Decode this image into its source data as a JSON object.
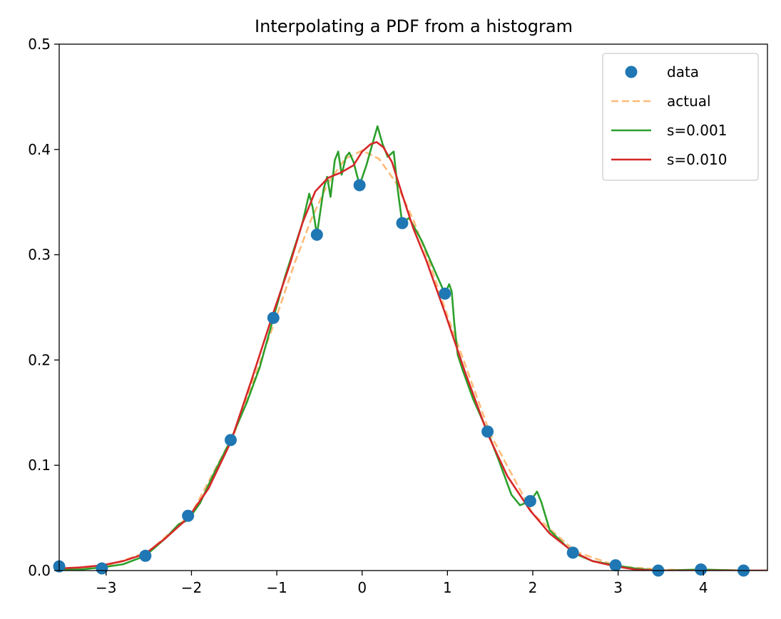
{
  "chart_data": {
    "type": "line",
    "title": "Interpolating a PDF from a histogram",
    "xlabel": "",
    "ylabel": "",
    "xlim": [
      -3.55,
      4.75
    ],
    "ylim": [
      0,
      0.5
    ],
    "x_ticks": [
      -3,
      -2,
      -1,
      0,
      1,
      2,
      3,
      4
    ],
    "x_tick_labels": [
      "−3",
      "−2",
      "−1",
      "0",
      "1",
      "2",
      "3",
      "4"
    ],
    "y_ticks": [
      0,
      0.1,
      0.2,
      0.3,
      0.4,
      0.5
    ],
    "y_tick_labels": [
      "0.0",
      "0.1",
      "0.2",
      "0.3",
      "0.4",
      "0.5"
    ],
    "grid": false,
    "legend_position": "top-right",
    "series": [
      {
        "name": "data",
        "kind": "points",
        "color": "#1f77b4",
        "x": [
          -3.55,
          -3.05,
          -2.54,
          -2.04,
          -1.54,
          -1.04,
          -0.53,
          -0.03,
          0.47,
          0.97,
          1.47,
          1.97,
          2.47,
          2.97,
          3.47,
          3.97,
          4.47
        ],
        "y": [
          0.004,
          0.002,
          0.014,
          0.052,
          0.124,
          0.24,
          0.319,
          0.366,
          0.33,
          0.263,
          0.132,
          0.066,
          0.017,
          0.005,
          0.0,
          0.001,
          0.0
        ]
      },
      {
        "name": "actual",
        "kind": "dashed-line",
        "color": "#ffbb78",
        "x": [
          -3.5,
          -3.0,
          -2.5,
          -2.0,
          -1.5,
          -1.0,
          -0.8,
          -0.6,
          -0.4,
          -0.2,
          0.0,
          0.2,
          0.4,
          0.6,
          0.8,
          1.0,
          1.5,
          2.0,
          2.5,
          3.0,
          3.5,
          4.0,
          4.5,
          4.75
        ],
        "y": [
          0.001,
          0.004,
          0.018,
          0.054,
          0.13,
          0.242,
          0.29,
          0.333,
          0.368,
          0.391,
          0.399,
          0.391,
          0.368,
          0.333,
          0.29,
          0.242,
          0.13,
          0.054,
          0.018,
          0.004,
          0.001,
          0.0,
          0.0,
          0.0
        ]
      },
      {
        "name": "s=0.001",
        "kind": "line",
        "color": "#2ca02c",
        "x": [
          -3.55,
          -3.3,
          -3.05,
          -2.8,
          -2.54,
          -2.3,
          -2.15,
          -2.04,
          -1.9,
          -1.75,
          -1.54,
          -1.35,
          -1.2,
          -1.04,
          -0.9,
          -0.8,
          -0.7,
          -0.62,
          -0.58,
          -0.53,
          -0.45,
          -0.41,
          -0.37,
          -0.32,
          -0.28,
          -0.24,
          -0.19,
          -0.15,
          -0.1,
          -0.03,
          0.05,
          0.12,
          0.18,
          0.24,
          0.3,
          0.37,
          0.42,
          0.47,
          0.55,
          0.7,
          0.85,
          0.97,
          1.02,
          1.05,
          1.08,
          1.12,
          1.18,
          1.3,
          1.47,
          1.6,
          1.75,
          1.85,
          1.97,
          2.05,
          2.1,
          2.2,
          2.47,
          2.7,
          2.97,
          3.2,
          3.47,
          3.97,
          4.47,
          4.75
        ],
        "y": [
          0.001,
          0.001,
          0.003,
          0.006,
          0.014,
          0.031,
          0.044,
          0.048,
          0.064,
          0.09,
          0.124,
          0.16,
          0.193,
          0.24,
          0.28,
          0.305,
          0.33,
          0.358,
          0.345,
          0.319,
          0.363,
          0.374,
          0.355,
          0.39,
          0.398,
          0.376,
          0.393,
          0.397,
          0.388,
          0.366,
          0.385,
          0.405,
          0.422,
          0.405,
          0.393,
          0.398,
          0.36,
          0.33,
          0.335,
          0.313,
          0.285,
          0.263,
          0.272,
          0.265,
          0.235,
          0.205,
          0.19,
          0.163,
          0.132,
          0.105,
          0.072,
          0.062,
          0.066,
          0.075,
          0.065,
          0.038,
          0.017,
          0.009,
          0.005,
          0.002,
          0.0,
          0.001,
          0.0,
          0.0
        ]
      },
      {
        "name": "s=0.010",
        "kind": "line",
        "color": "#d62728",
        "x": [
          -3.55,
          -3.3,
          -3.05,
          -2.8,
          -2.54,
          -2.3,
          -2.04,
          -1.8,
          -1.54,
          -1.3,
          -1.04,
          -0.85,
          -0.7,
          -0.55,
          -0.4,
          -0.25,
          -0.1,
          0.0,
          0.1,
          0.17,
          0.25,
          0.35,
          0.47,
          0.6,
          0.75,
          0.97,
          1.2,
          1.47,
          1.7,
          1.97,
          2.2,
          2.47,
          2.7,
          2.97,
          3.2,
          3.47,
          3.97,
          4.47,
          4.75
        ],
        "y": [
          0.002,
          0.003,
          0.005,
          0.009,
          0.016,
          0.031,
          0.05,
          0.078,
          0.122,
          0.18,
          0.245,
          0.29,
          0.33,
          0.36,
          0.373,
          0.378,
          0.385,
          0.398,
          0.405,
          0.407,
          0.402,
          0.388,
          0.357,
          0.325,
          0.295,
          0.245,
          0.19,
          0.13,
          0.09,
          0.057,
          0.035,
          0.018,
          0.009,
          0.004,
          0.001,
          0.0,
          0.0,
          0.0,
          0.0
        ]
      }
    ]
  }
}
